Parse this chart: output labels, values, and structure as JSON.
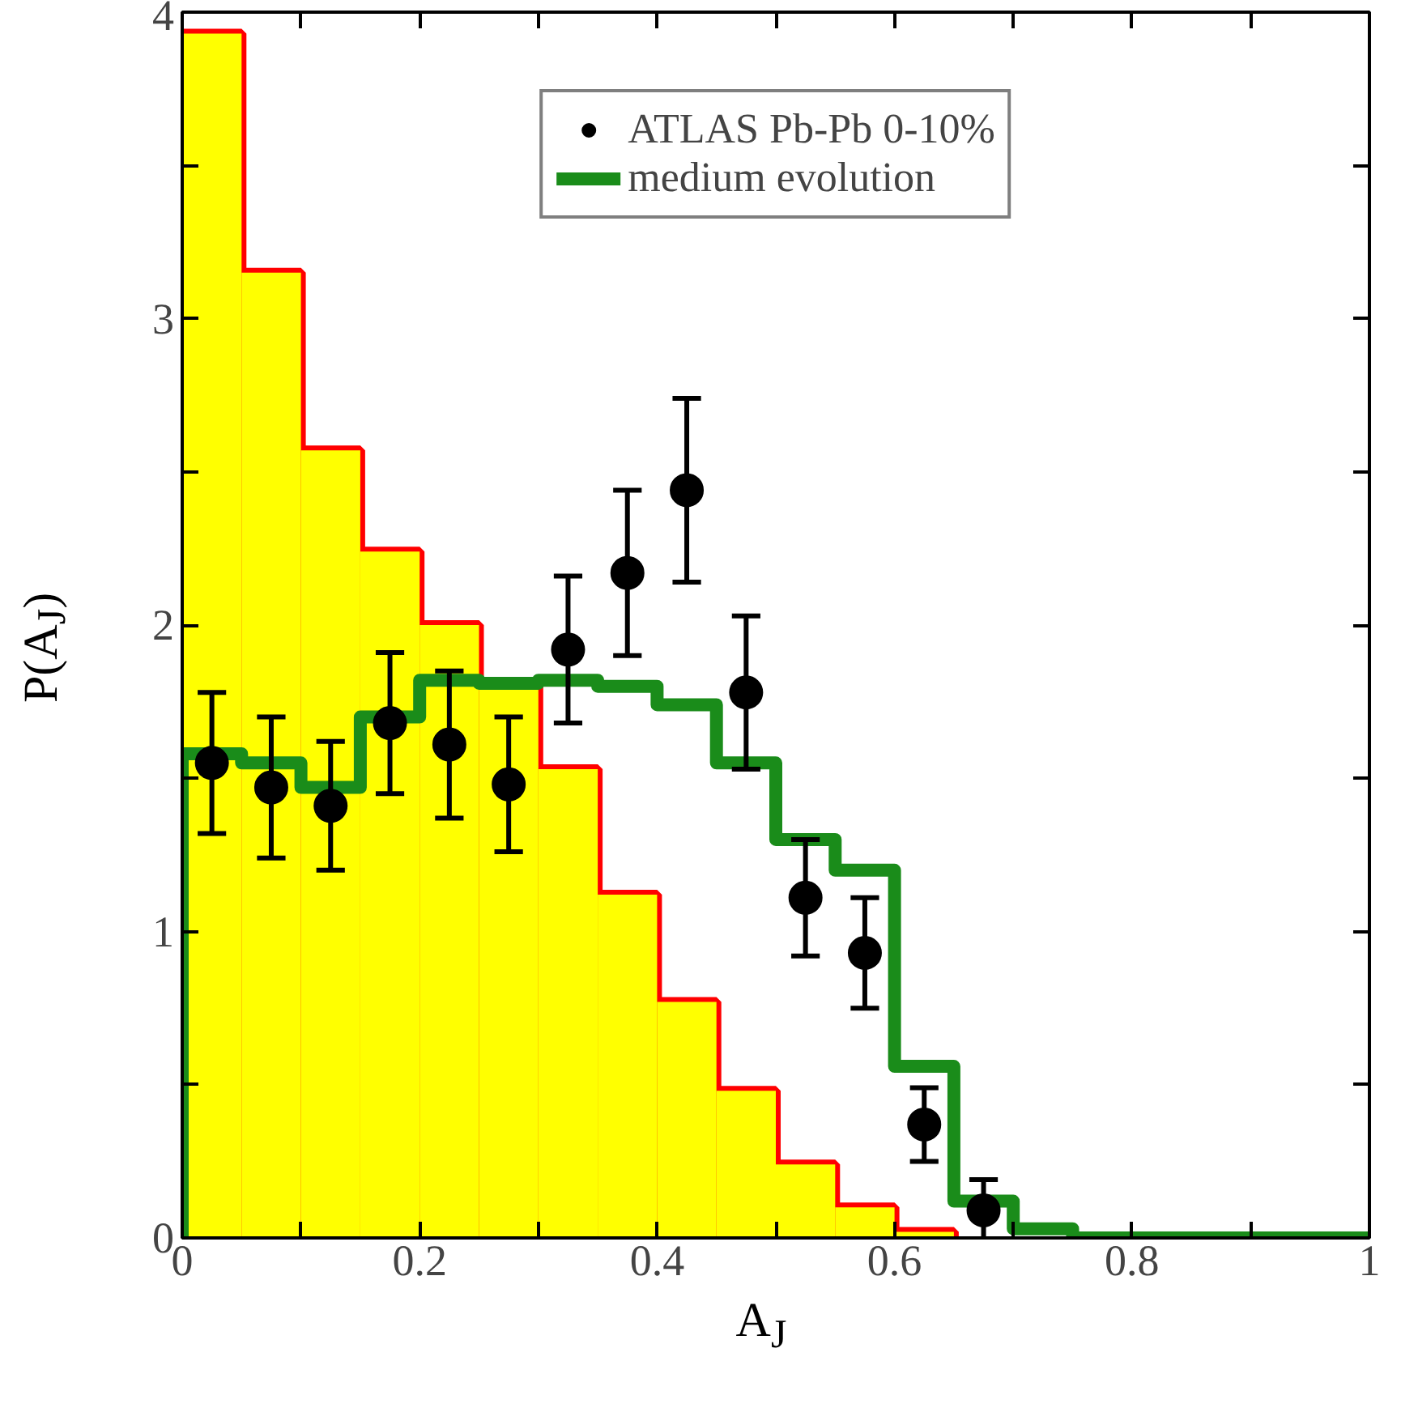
{
  "chart_data": {
    "type": "histogram",
    "xlabel": "A$_{J}$",
    "ylabel": "P(A$_{J}$)",
    "xlim": [
      0,
      1
    ],
    "ylim": [
      0,
      4
    ],
    "xticks": [
      0,
      {
        "value": 0.1,
        "label": null
      },
      0.2,
      {
        "value": 0.3,
        "label": null
      },
      0.4,
      {
        "value": 0.5,
        "label": null
      },
      0.6,
      {
        "value": 0.7,
        "label": null
      },
      0.8,
      {
        "value": 0.9,
        "label": null
      },
      1
    ],
    "yticks": [
      0,
      {
        "value": 0.5,
        "label": null
      },
      1,
      {
        "value": 1.5,
        "label": null
      },
      2,
      {
        "value": 2.5,
        "label": null
      },
      3,
      {
        "value": 3.5,
        "label": null
      },
      4
    ],
    "grid": false,
    "legend": "top",
    "series": [
      {
        "color": "#ff0000",
        "colors": [
          "#ffff00",
          "#ffff00",
          "#ffff00",
          "#ffff00",
          "#ffff00",
          "#ffff00",
          "#ffff00",
          "#ffff00",
          "#ffff00",
          "#ffff00",
          "#ffff00",
          "#ffff00",
          "#ffff00"
        ],
        "bins": [
          0,
          0.05,
          0.1,
          0.15,
          0.2,
          0.25,
          0.3,
          0.35,
          0.4,
          0.45,
          0.5,
          0.55,
          0.6,
          0.65
        ],
        "values": [
          3.93,
          3.15,
          2.57,
          2.24,
          2.0,
          1.81,
          1.53,
          1.12,
          0.77,
          0.48,
          0.24,
          0.1,
          0.02
        ]
      },
      {
        "name": "medium evolution",
        "color": "#1a8c1a",
        "bins": [
          0,
          0.05,
          0.1,
          0.15,
          0.2,
          0.25,
          0.3,
          0.35,
          0.4,
          0.45,
          0.5,
          0.55,
          0.6,
          0.65,
          0.7,
          0.75,
          1
        ],
        "values": [
          1.58,
          1.55,
          1.47,
          1.7,
          1.82,
          1.81,
          1.82,
          1.8,
          1.74,
          1.55,
          1.3,
          1.2,
          0.56,
          0.12,
          0.03,
          0
        ]
      },
      {
        "type": "scatter",
        "name": "ATLAS Pb-Pb 0-10%",
        "color": "#000000",
        "marker": "circle",
        "x": [
          0.025,
          0.075,
          0.125,
          0.175,
          0.225,
          0.275,
          0.325,
          0.375,
          0.425,
          0.475,
          0.525,
          0.575,
          0.625,
          0.675
        ],
        "values": [
          1.55,
          1.47,
          1.41,
          1.68,
          1.61,
          1.48,
          1.92,
          2.17,
          2.44,
          1.78,
          1.11,
          0.93,
          0.37,
          0.09
        ],
        "errors": [
          0.23,
          0.23,
          0.21,
          0.23,
          0.24,
          0.22,
          0.24,
          0.27,
          0.3,
          0.25,
          0.19,
          0.18,
          0.12,
          0.1
        ]
      }
    ]
  }
}
